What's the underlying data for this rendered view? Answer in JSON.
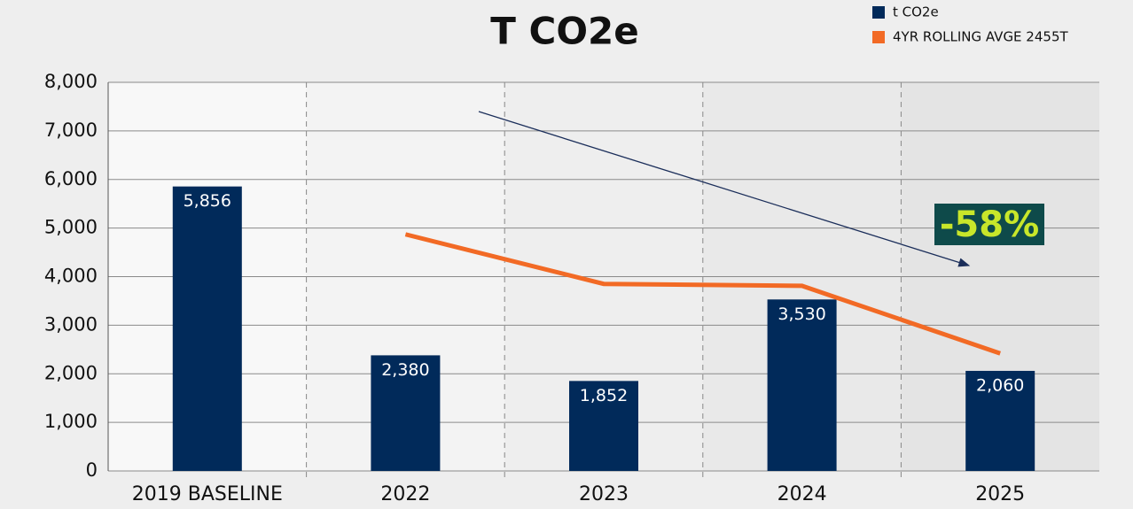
{
  "chart_data": {
    "type": "bar",
    "title": "T CO2e",
    "categories": [
      "2019 BASELINE",
      "2022",
      "2023",
      "2024",
      "2025"
    ],
    "series": [
      {
        "name": "t CO2e",
        "color": "#012a5a",
        "values": [
          5856,
          2380,
          1852,
          3530,
          2060
        ],
        "value_labels": [
          "5,856",
          "2,380",
          "1,852",
          "3,530",
          "2,060"
        ]
      },
      {
        "name": "4YR ROLLING AVGE 2455T",
        "type": "line",
        "color": "#f26a25",
        "values": [
          null,
          4870,
          3850,
          3810,
          2420
        ]
      }
    ],
    "annotations": [
      "-58%"
    ],
    "ylim": [
      0,
      8000
    ],
    "yticks": [
      0,
      {
        "value": 1000,
        "label": "1,000"
      },
      {
        "value": 2000,
        "label": "2,000"
      },
      {
        "value": 3000,
        "label": "3,000"
      },
      {
        "value": 4000,
        "label": "4,000"
      },
      {
        "value": 5000,
        "label": "5,000"
      },
      {
        "value": 6000,
        "label": "6,000"
      },
      {
        "value": 7000,
        "label": "7,000"
      },
      {
        "value": 8000,
        "label": "8,000"
      }
    ],
    "grid": true,
    "legend": "top-right"
  }
}
